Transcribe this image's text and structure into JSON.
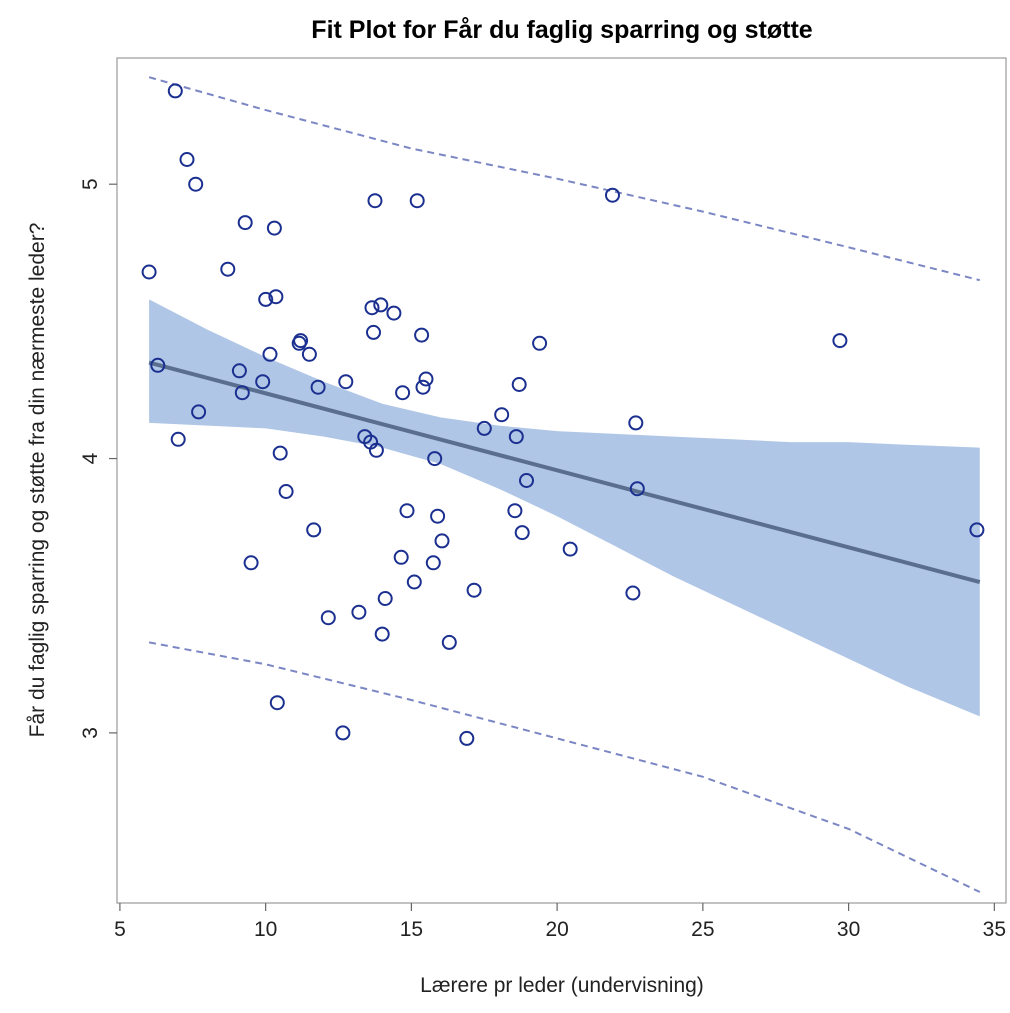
{
  "chart_data": {
    "type": "scatter",
    "title": "Fit Plot for Får du faglig sparring og støtte",
    "xlabel": "Lærere pr leder (undervisning)",
    "ylabel": "Får du faglig sparring og støtte fra din nærmeste leder?",
    "xlim": [
      4.9,
      35.4
    ],
    "ylim": [
      2.38,
      5.46
    ],
    "x_ticks": [
      5,
      10,
      15,
      20,
      25,
      30,
      35
    ],
    "y_ticks": [
      3,
      4,
      5
    ],
    "x_tick_labels": [
      "5",
      "10",
      "15",
      "20",
      "25",
      "30",
      "35"
    ],
    "y_tick_labels": [
      "3",
      "4",
      "5"
    ],
    "grid": false,
    "legend": "none",
    "colors": {
      "points": "#1a2f8f",
      "fit_line": "#5a6f8f",
      "confidence_band": "#b0c6e6",
      "prediction_limits": "#7b86c4",
      "frame": "#999999"
    },
    "fit_line": {
      "x": [
        6,
        34.5
      ],
      "y": [
        4.35,
        3.55
      ]
    },
    "confidence_band": {
      "x": [
        6,
        8,
        10,
        12,
        14,
        16,
        18,
        20,
        22,
        24,
        26,
        28,
        30,
        32,
        34.5
      ],
      "lower": [
        4.13,
        4.12,
        4.11,
        4.08,
        4.04,
        3.98,
        3.89,
        3.79,
        3.68,
        3.57,
        3.47,
        3.37,
        3.27,
        3.17,
        3.06
      ],
      "upper": [
        4.58,
        4.47,
        4.37,
        4.28,
        4.2,
        4.15,
        4.12,
        4.1,
        4.09,
        4.08,
        4.07,
        4.06,
        4.06,
        4.05,
        4.04
      ]
    },
    "prediction_limits": {
      "x": [
        6,
        10,
        15,
        20,
        25,
        30,
        34.5
      ],
      "upper": [
        5.39,
        5.27,
        5.13,
        5.02,
        4.9,
        4.77,
        4.65
      ],
      "lower": [
        3.33,
        3.25,
        3.12,
        2.98,
        2.84,
        2.65,
        2.42
      ]
    },
    "points": [
      {
        "x": 6.0,
        "y": 4.68
      },
      {
        "x": 6.3,
        "y": 4.34
      },
      {
        "x": 6.9,
        "y": 5.34
      },
      {
        "x": 7.0,
        "y": 4.07
      },
      {
        "x": 7.3,
        "y": 5.09
      },
      {
        "x": 7.6,
        "y": 5.0
      },
      {
        "x": 7.7,
        "y": 4.17
      },
      {
        "x": 8.7,
        "y": 4.69
      },
      {
        "x": 9.1,
        "y": 4.32
      },
      {
        "x": 9.2,
        "y": 4.24
      },
      {
        "x": 9.3,
        "y": 4.86
      },
      {
        "x": 9.5,
        "y": 3.62
      },
      {
        "x": 9.9,
        "y": 4.28
      },
      {
        "x": 10.0,
        "y": 4.58
      },
      {
        "x": 10.15,
        "y": 4.38
      },
      {
        "x": 10.3,
        "y": 4.84
      },
      {
        "x": 10.35,
        "y": 4.59
      },
      {
        "x": 10.4,
        "y": 3.11
      },
      {
        "x": 10.5,
        "y": 4.02
      },
      {
        "x": 10.7,
        "y": 3.88
      },
      {
        "x": 11.15,
        "y": 4.42
      },
      {
        "x": 11.2,
        "y": 4.43
      },
      {
        "x": 11.5,
        "y": 4.38
      },
      {
        "x": 11.65,
        "y": 3.74
      },
      {
        "x": 11.8,
        "y": 4.26
      },
      {
        "x": 12.15,
        "y": 3.42
      },
      {
        "x": 12.65,
        "y": 3.0
      },
      {
        "x": 12.75,
        "y": 4.28
      },
      {
        "x": 13.2,
        "y": 3.44
      },
      {
        "x": 13.4,
        "y": 4.08
      },
      {
        "x": 13.6,
        "y": 4.06
      },
      {
        "x": 13.65,
        "y": 4.55
      },
      {
        "x": 13.7,
        "y": 4.46
      },
      {
        "x": 13.75,
        "y": 4.94
      },
      {
        "x": 13.8,
        "y": 4.03
      },
      {
        "x": 13.95,
        "y": 4.56
      },
      {
        "x": 14.0,
        "y": 3.36
      },
      {
        "x": 14.1,
        "y": 3.49
      },
      {
        "x": 14.4,
        "y": 4.53
      },
      {
        "x": 14.65,
        "y": 3.64
      },
      {
        "x": 14.7,
        "y": 4.24
      },
      {
        "x": 14.85,
        "y": 3.81
      },
      {
        "x": 15.1,
        "y": 3.55
      },
      {
        "x": 15.2,
        "y": 4.94
      },
      {
        "x": 15.35,
        "y": 4.45
      },
      {
        "x": 15.4,
        "y": 4.26
      },
      {
        "x": 15.5,
        "y": 4.29
      },
      {
        "x": 15.75,
        "y": 3.62
      },
      {
        "x": 15.8,
        "y": 4.0
      },
      {
        "x": 15.9,
        "y": 3.79
      },
      {
        "x": 16.05,
        "y": 3.7
      },
      {
        "x": 16.3,
        "y": 3.33
      },
      {
        "x": 16.9,
        "y": 2.98
      },
      {
        "x": 17.15,
        "y": 3.52
      },
      {
        "x": 17.5,
        "y": 4.11
      },
      {
        "x": 18.1,
        "y": 4.16
      },
      {
        "x": 18.55,
        "y": 3.81
      },
      {
        "x": 18.6,
        "y": 4.08
      },
      {
        "x": 18.7,
        "y": 4.27
      },
      {
        "x": 18.8,
        "y": 3.73
      },
      {
        "x": 18.95,
        "y": 3.92
      },
      {
        "x": 19.4,
        "y": 4.42
      },
      {
        "x": 20.45,
        "y": 3.67
      },
      {
        "x": 21.9,
        "y": 4.96
      },
      {
        "x": 22.6,
        "y": 3.51
      },
      {
        "x": 22.7,
        "y": 4.13
      },
      {
        "x": 22.75,
        "y": 3.89
      },
      {
        "x": 29.7,
        "y": 4.43
      },
      {
        "x": 34.4,
        "y": 3.74
      }
    ]
  }
}
